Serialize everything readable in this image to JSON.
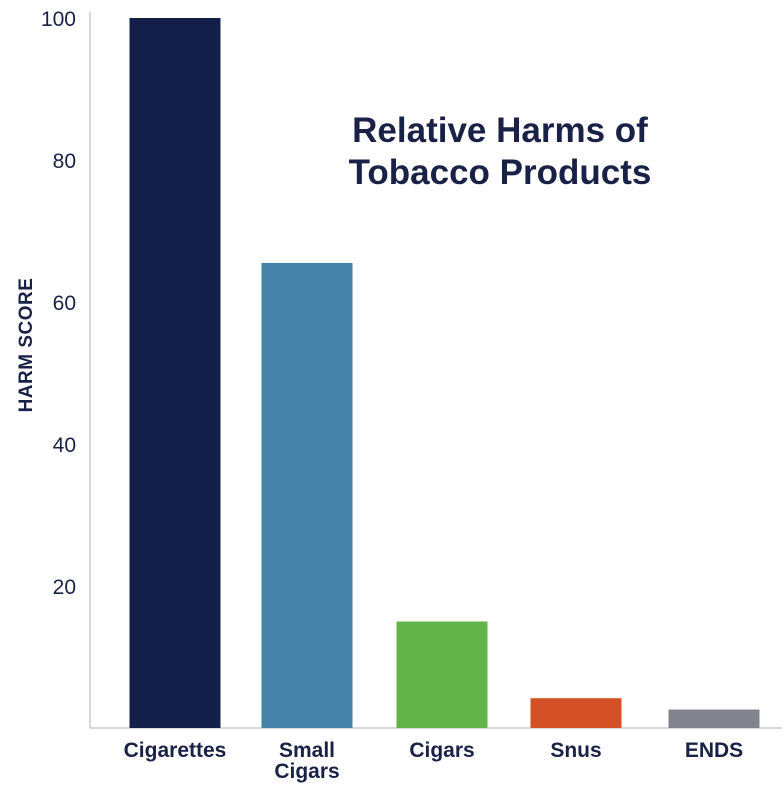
{
  "chart_data": {
    "type": "bar",
    "title_lines": [
      "Relative Harms of",
      "Tobacco Products"
    ],
    "xlabel": "",
    "ylabel": "HARM SCORE",
    "ylim": [
      0,
      100
    ],
    "yticks": [
      20,
      40,
      60,
      80,
      100
    ],
    "categories": [
      [
        "Cigarettes"
      ],
      [
        "Small",
        "Cigars"
      ],
      [
        "Cigars"
      ],
      [
        "Snus"
      ],
      [
        "ENDS"
      ]
    ],
    "values": [
      100,
      65.5,
      15,
      4.2,
      2.6
    ],
    "colors": [
      "#14204a",
      "#4683a8",
      "#62b448",
      "#d45027",
      "#81848d"
    ],
    "grid": false,
    "legend": "none"
  }
}
